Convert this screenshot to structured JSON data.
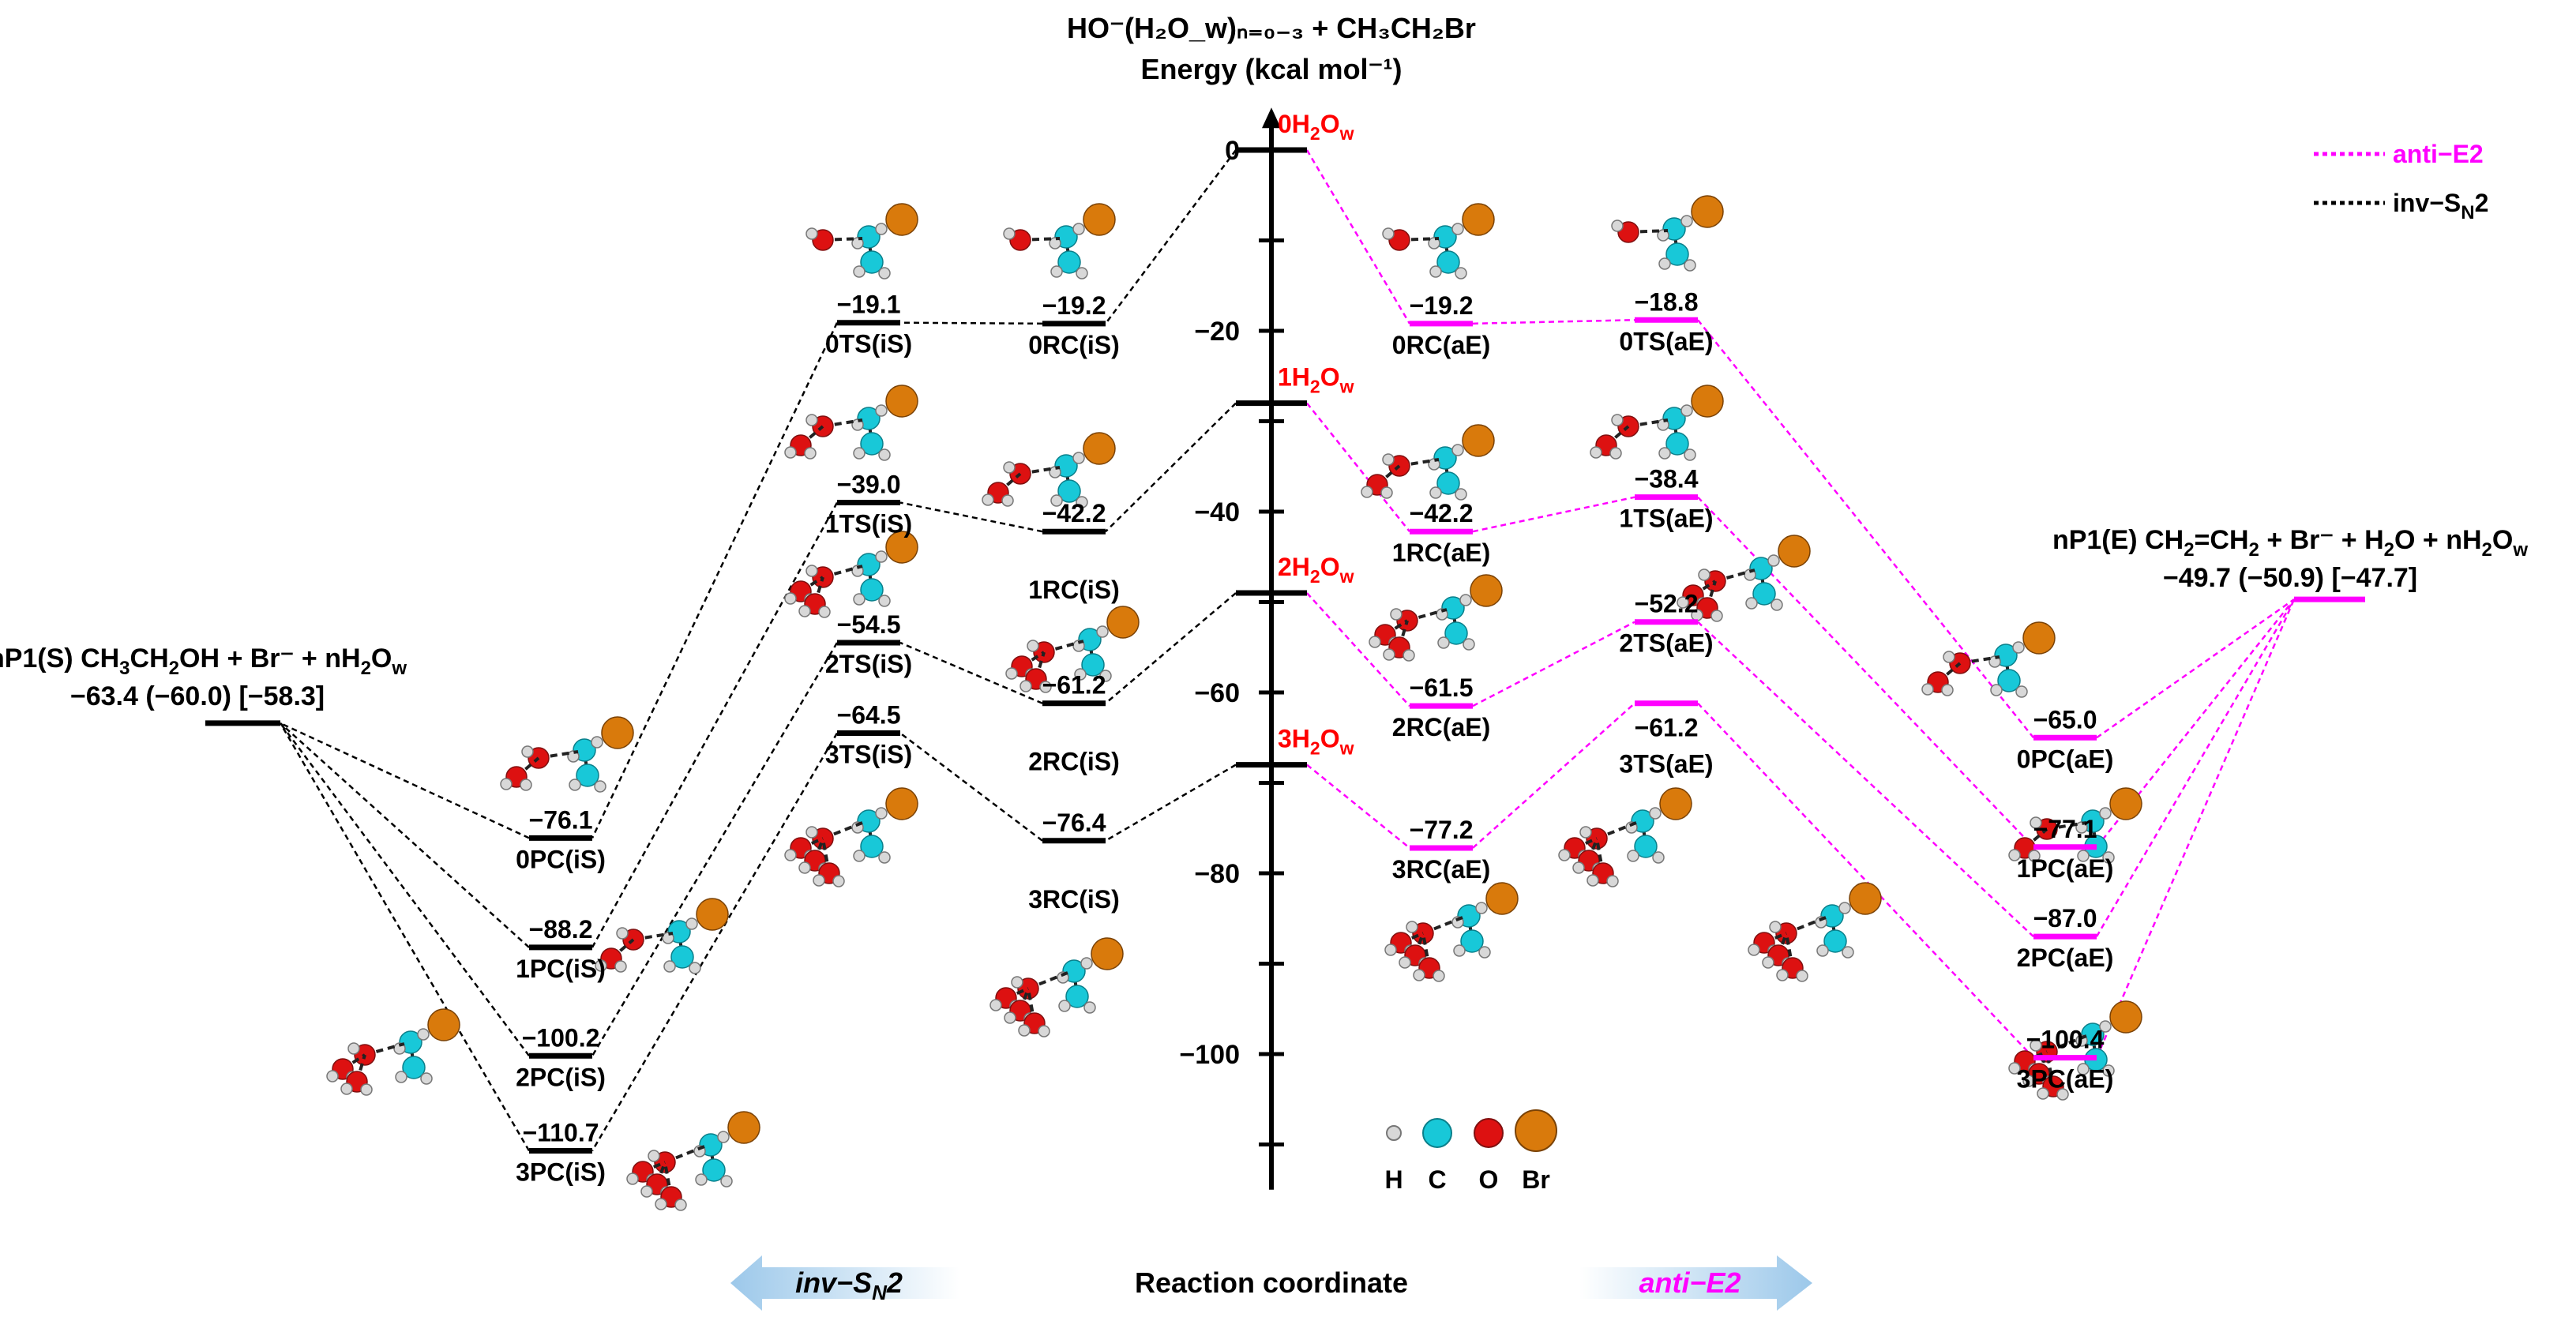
{
  "colors": {
    "anti_e2": "#ff00ff",
    "inv_sn2": "#000000",
    "water_label": "#ff0000",
    "H": "#d8d8d8",
    "C": "#18c8d8",
    "O": "#dd1111",
    "Br": "#d97a0c"
  },
  "chart_data": {
    "type": "energy_profile",
    "title_line1": "HO⁻(H₂O_w)ₙ₌₀₋₃ + CH₃CH₂Br",
    "title_line2": "Energy (kcal mol⁻¹)",
    "xlabel": "Reaction coordinate",
    "ylim": [
      -115,
      4
    ],
    "yticks": [
      0,
      -20,
      -40,
      -60,
      -80,
      -100
    ],
    "legend": [
      {
        "name": "anti−E2",
        "color": "#ff00ff"
      },
      {
        "name": "inv−S_N2",
        "color": "#000000"
      }
    ],
    "arrows": {
      "left": "inv−S_N2",
      "right": "anti−E2"
    },
    "atom_legend": [
      "H",
      "C",
      "O",
      "Br"
    ],
    "water_levels": [
      {
        "label": "0H₂O_w",
        "energy": 0
      },
      {
        "label": "1H₂O_w",
        "energy": -28
      },
      {
        "label": "2H₂O_w",
        "energy": -49
      },
      {
        "label": "3H₂O_w",
        "energy": -68
      }
    ],
    "products": {
      "sn2": {
        "line1": "nP1(S) CH₃CH₂OH + Br⁻ + nH₂O_w",
        "line2": "−63.4 (−60.0) [−58.3]"
      },
      "e2": {
        "line1": "nP1(E) CH₂=CH₂ + Br⁻ + H₂O + nH₂O_w",
        "line2": "−49.7 (−50.9) [−47.7]"
      }
    },
    "series": [
      {
        "name": "inv−S_N2",
        "levels": [
          {
            "n": 0,
            "RC": {
              "label": "0RC(iS)",
              "energy": -19.2,
              "value": "−19.2"
            },
            "TS": {
              "label": "0TS(iS)",
              "energy": -19.1,
              "value": "−19.1"
            },
            "PC": {
              "label": "0PC(iS)",
              "energy": -76.1,
              "value": "−76.1"
            }
          },
          {
            "n": 1,
            "RC": {
              "label": "1RC(iS)",
              "energy": -42.2,
              "value": "−42.2"
            },
            "TS": {
              "label": "1TS(iS)",
              "energy": -39.0,
              "value": "−39.0"
            },
            "PC": {
              "label": "1PC(iS)",
              "energy": -88.2,
              "value": "−88.2"
            }
          },
          {
            "n": 2,
            "RC": {
              "label": "2RC(iS)",
              "energy": -61.2,
              "value": "−61.2"
            },
            "TS": {
              "label": "2TS(iS)",
              "energy": -54.5,
              "value": "−54.5"
            },
            "PC": {
              "label": "2PC(iS)",
              "energy": -100.2,
              "value": "−100.2"
            }
          },
          {
            "n": 3,
            "RC": {
              "label": "3RC(iS)",
              "energy": -76.4,
              "value": "−76.4"
            },
            "TS": {
              "label": "3TS(iS)",
              "energy": -64.5,
              "value": "−64.5"
            },
            "PC": {
              "label": "3PC(iS)",
              "energy": -110.7,
              "value": "−110.7"
            }
          }
        ]
      },
      {
        "name": "anti−E2",
        "levels": [
          {
            "n": 0,
            "RC": {
              "label": "0RC(aE)",
              "energy": -19.2,
              "value": "−19.2"
            },
            "TS": {
              "label": "0TS(aE)",
              "energy": -18.8,
              "value": "−18.8"
            },
            "PC": {
              "label": "0PC(aE)",
              "energy": -65.0,
              "value": "−65.0"
            }
          },
          {
            "n": 1,
            "RC": {
              "label": "1RC(aE)",
              "energy": -42.2,
              "value": "−42.2"
            },
            "TS": {
              "label": "1TS(aE)",
              "energy": -38.4,
              "value": "−38.4"
            },
            "PC": {
              "label": "1PC(aE)",
              "energy": -77.1,
              "value": "−77.1"
            }
          },
          {
            "n": 2,
            "RC": {
              "label": "2RC(aE)",
              "energy": -61.5,
              "value": "−61.5"
            },
            "TS": {
              "label": "2TS(aE)",
              "energy": -52.2,
              "value": "−52.2"
            },
            "PC": {
              "label": "2PC(aE)",
              "energy": -87.0,
              "value": "−87.0"
            }
          },
          {
            "n": 3,
            "RC": {
              "label": "3RC(aE)",
              "energy": -77.2,
              "value": "−77.2"
            },
            "TS": {
              "label": "3TS(aE)",
              "energy": -61.2,
              "value": "−61.2"
            },
            "PC": {
              "label": "3PC(aE)",
              "energy": -100.4,
              "value": "−100.4"
            }
          }
        ]
      }
    ]
  }
}
